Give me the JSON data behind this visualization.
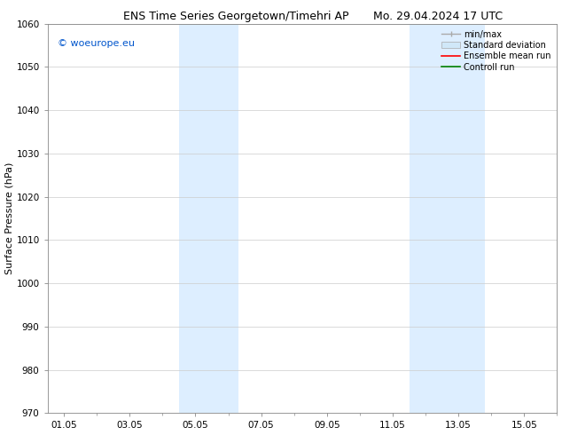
{
  "title": "ENS Time Series Georgetown/Timehri AP",
  "title2": "Mo. 29.04.2024 17 UTC",
  "ylabel": "Surface Pressure (hPa)",
  "ylim": [
    970,
    1060
  ],
  "yticks": [
    970,
    980,
    990,
    1000,
    1010,
    1020,
    1030,
    1040,
    1050,
    1060
  ],
  "xtick_labels": [
    "01.05",
    "03.05",
    "05.05",
    "07.05",
    "09.05",
    "11.05",
    "13.05",
    "15.05"
  ],
  "xtick_positions": [
    0,
    2,
    4,
    6,
    8,
    10,
    12,
    14
  ],
  "xlim": [
    -0.5,
    15
  ],
  "shaded_bands": [
    {
      "x_start": 3.5,
      "x_end": 5.3,
      "color": "#ddeeff"
    },
    {
      "x_start": 10.5,
      "x_end": 12.8,
      "color": "#ddeeff"
    }
  ],
  "watermark": "© woeurope.eu",
  "watermark_color": "#0055cc",
  "bg_color": "#ffffff",
  "grid_color": "#cccccc",
  "title_fontsize": 9,
  "title2_fontsize": 9,
  "ylabel_fontsize": 8,
  "tick_fontsize": 7.5,
  "legend_fontsize": 7,
  "watermark_fontsize": 8
}
